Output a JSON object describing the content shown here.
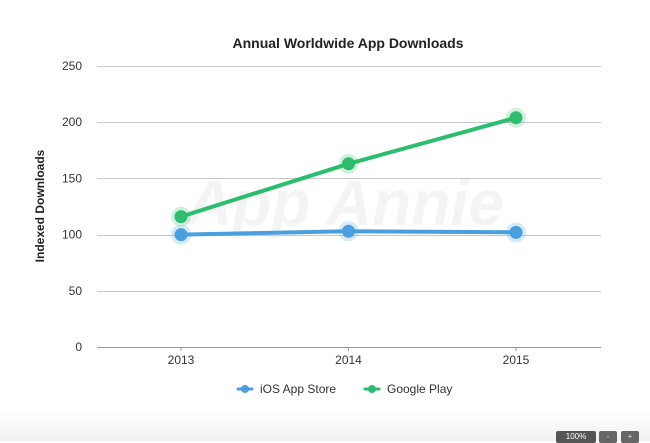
{
  "chart_data": {
    "type": "line",
    "title": "Annual Worldwide App Downloads",
    "xlabel": "",
    "ylabel": "Indexed Downloads",
    "categories": [
      "2013",
      "2014",
      "2015"
    ],
    "ylim": [
      0,
      250
    ],
    "yticks": [
      0,
      50,
      100,
      150,
      200,
      250
    ],
    "grid": true,
    "legend_position": "bottom",
    "watermark": "App Annie",
    "series": [
      {
        "name": "iOS App Store",
        "values": [
          100,
          103,
          102
        ],
        "color": "#4a9fe0"
      },
      {
        "name": "Google Play",
        "values": [
          116,
          163,
          204
        ],
        "color": "#2dbd6e"
      }
    ]
  },
  "viewer": {
    "zoom_label": "100%",
    "controls": [
      "-",
      "+"
    ]
  }
}
